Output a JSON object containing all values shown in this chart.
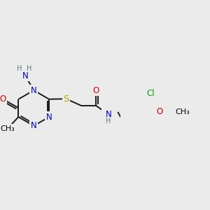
{
  "bg_color": "#ebebeb",
  "atom_colors": {
    "C": "#000000",
    "N": "#0000cc",
    "O": "#dd0000",
    "S": "#bbaa00",
    "Cl": "#00aa00",
    "H": "#508080"
  },
  "bond_color": "#1a1a1a",
  "bond_width": 1.4,
  "font_size": 8.5,
  "title": ""
}
